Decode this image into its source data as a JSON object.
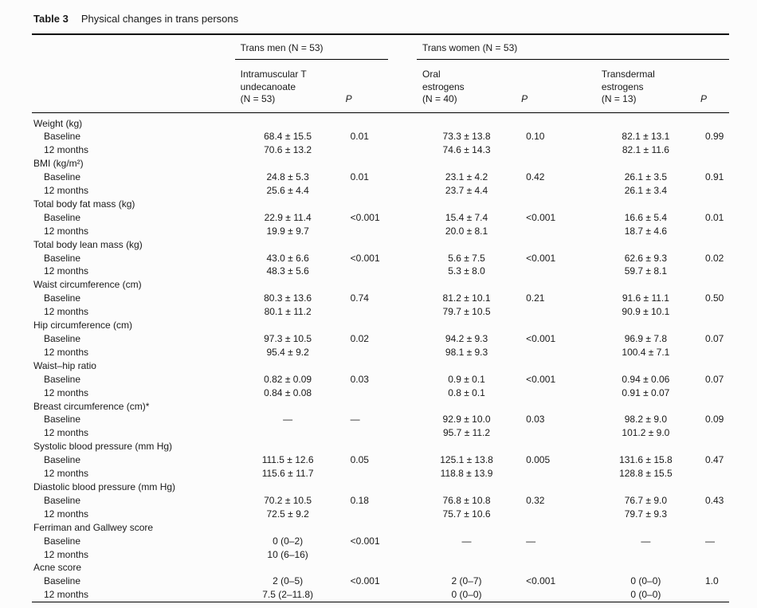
{
  "page": {
    "background": "#fcfcfc",
    "text_color": "#1a1a1a",
    "rule_color": "#000000"
  },
  "table": {
    "label": "Table 3",
    "title": "Physical changes in trans persons",
    "group_headers": [
      {
        "label": "Trans men (N = 53)",
        "span": 2
      },
      {
        "label": "Trans women (N = 53)",
        "span": 4
      }
    ],
    "column_headers": [
      "Intramuscular T\nundecanoate\n(N = 53)",
      "P",
      "Oral\nestrogens\n(N = 40)",
      "P",
      "Transdermal\nestrogens\n(N = 13)",
      "P"
    ],
    "sections": [
      {
        "name": "Weight (kg)",
        "rows": [
          {
            "label": "Baseline",
            "values": [
              "68.4 ± 15.5",
              "0.01",
              "73.3 ± 13.8",
              "0.10",
              "82.1 ± 13.1",
              "0.99"
            ]
          },
          {
            "label": "12 months",
            "values": [
              "70.6 ± 13.2",
              "",
              "74.6 ± 14.3",
              "",
              "82.1 ± 11.6",
              ""
            ]
          }
        ]
      },
      {
        "name": "BMI (kg/m²)",
        "rows": [
          {
            "label": "Baseline",
            "values": [
              "24.8 ± 5.3",
              "0.01",
              "23.1 ± 4.2",
              "0.42",
              "26.1 ± 3.5",
              "0.91"
            ]
          },
          {
            "label": "12 months",
            "values": [
              "25.6 ± 4.4",
              "",
              "23.7 ± 4.4",
              "",
              "26.1 ± 3.4",
              ""
            ]
          }
        ]
      },
      {
        "name": "Total body fat mass (kg)",
        "rows": [
          {
            "label": "Baseline",
            "values": [
              "22.9 ± 11.4",
              "<0.001",
              "15.4 ± 7.4",
              "<0.001",
              "16.6 ± 5.4",
              "0.01"
            ]
          },
          {
            "label": "12 months",
            "values": [
              "19.9 ± 9.7",
              "",
              "20.0 ± 8.1",
              "",
              "18.7 ± 4.6",
              ""
            ]
          }
        ]
      },
      {
        "name": "Total body lean mass (kg)",
        "rows": [
          {
            "label": "Baseline",
            "values": [
              "43.0 ± 6.6",
              "<0.001",
              "5.6 ± 7.5",
              "<0.001",
              "62.6 ± 9.3",
              "0.02"
            ]
          },
          {
            "label": "12 months",
            "values": [
              "48.3 ± 5.6",
              "",
              "5.3 ± 8.0",
              "",
              "59.7 ± 8.1",
              ""
            ]
          }
        ]
      },
      {
        "name": "Waist circumference (cm)",
        "rows": [
          {
            "label": "Baseline",
            "values": [
              "80.3 ± 13.6",
              "0.74",
              "81.2 ± 10.1",
              "0.21",
              "91.6 ± 11.1",
              "0.50"
            ]
          },
          {
            "label": "12 months",
            "values": [
              "80.1 ± 11.2",
              "",
              "79.7 ± 10.5",
              "",
              "90.9 ± 10.1",
              ""
            ]
          }
        ]
      },
      {
        "name": "Hip circumference (cm)",
        "rows": [
          {
            "label": "Baseline",
            "values": [
              "97.3 ± 10.5",
              "0.02",
              "94.2 ± 9.3",
              "<0.001",
              "96.9 ± 7.8",
              "0.07"
            ]
          },
          {
            "label": "12 months",
            "values": [
              "95.4 ± 9.2",
              "",
              "98.1 ± 9.3",
              "",
              "100.4 ± 7.1",
              ""
            ]
          }
        ]
      },
      {
        "name": "Waist–hip ratio",
        "rows": [
          {
            "label": "Baseline",
            "values": [
              "0.82 ± 0.09",
              "0.03",
              "0.9 ± 0.1",
              "<0.001",
              "0.94 ± 0.06",
              "0.07"
            ]
          },
          {
            "label": "12 months",
            "values": [
              "0.84 ± 0.08",
              "",
              "0.8 ± 0.1",
              "",
              "0.91 ± 0.07",
              ""
            ]
          }
        ]
      },
      {
        "name": "Breast circumference (cm)*",
        "rows": [
          {
            "label": "Baseline",
            "values": [
              "—",
              "—",
              "92.9 ± 10.0",
              "0.03",
              "98.2 ± 9.0",
              "0.09"
            ]
          },
          {
            "label": "12 months",
            "values": [
              "",
              "",
              "95.7 ± 11.2",
              "",
              "101.2 ± 9.0",
              ""
            ]
          }
        ]
      },
      {
        "name": "Systolic blood pressure (mm Hg)",
        "rows": [
          {
            "label": "Baseline",
            "values": [
              "111.5 ± 12.6",
              "0.05",
              "125.1 ± 13.8",
              "0.005",
              "131.6 ± 15.8",
              "0.47"
            ]
          },
          {
            "label": "12 months",
            "values": [
              "115.6 ± 11.7",
              "",
              "118.8 ± 13.9",
              "",
              "128.8 ± 15.5",
              ""
            ]
          }
        ]
      },
      {
        "name": "Diastolic blood pressure (mm Hg)",
        "rows": [
          {
            "label": "Baseline",
            "values": [
              "70.2 ± 10.5",
              "0.18",
              "76.8 ± 10.8",
              "0.32",
              "76.7 ± 9.0",
              "0.43"
            ]
          },
          {
            "label": "12 months",
            "values": [
              "72.5 ± 9.2",
              "",
              "75.7 ± 10.6",
              "",
              "79.7 ± 9.3",
              ""
            ]
          }
        ]
      },
      {
        "name": "Ferriman and Gallwey score",
        "rows": [
          {
            "label": "Baseline",
            "values": [
              "0 (0–2)",
              "<0.001",
              "—",
              "—",
              "—",
              "—"
            ]
          },
          {
            "label": "12 months",
            "values": [
              "10 (6–16)",
              "",
              "",
              "",
              "",
              ""
            ]
          }
        ]
      },
      {
        "name": "Acne score",
        "rows": [
          {
            "label": "Baseline",
            "values": [
              "2 (0–5)",
              "<0.001",
              "2 (0–7)",
              "<0.001",
              "0 (0–0)",
              "1.0"
            ]
          },
          {
            "label": "12 months",
            "values": [
              "7.5 (2–11.8)",
              "",
              "0 (0–0)",
              "",
              "0 (0–0)",
              ""
            ]
          }
        ]
      }
    ]
  }
}
